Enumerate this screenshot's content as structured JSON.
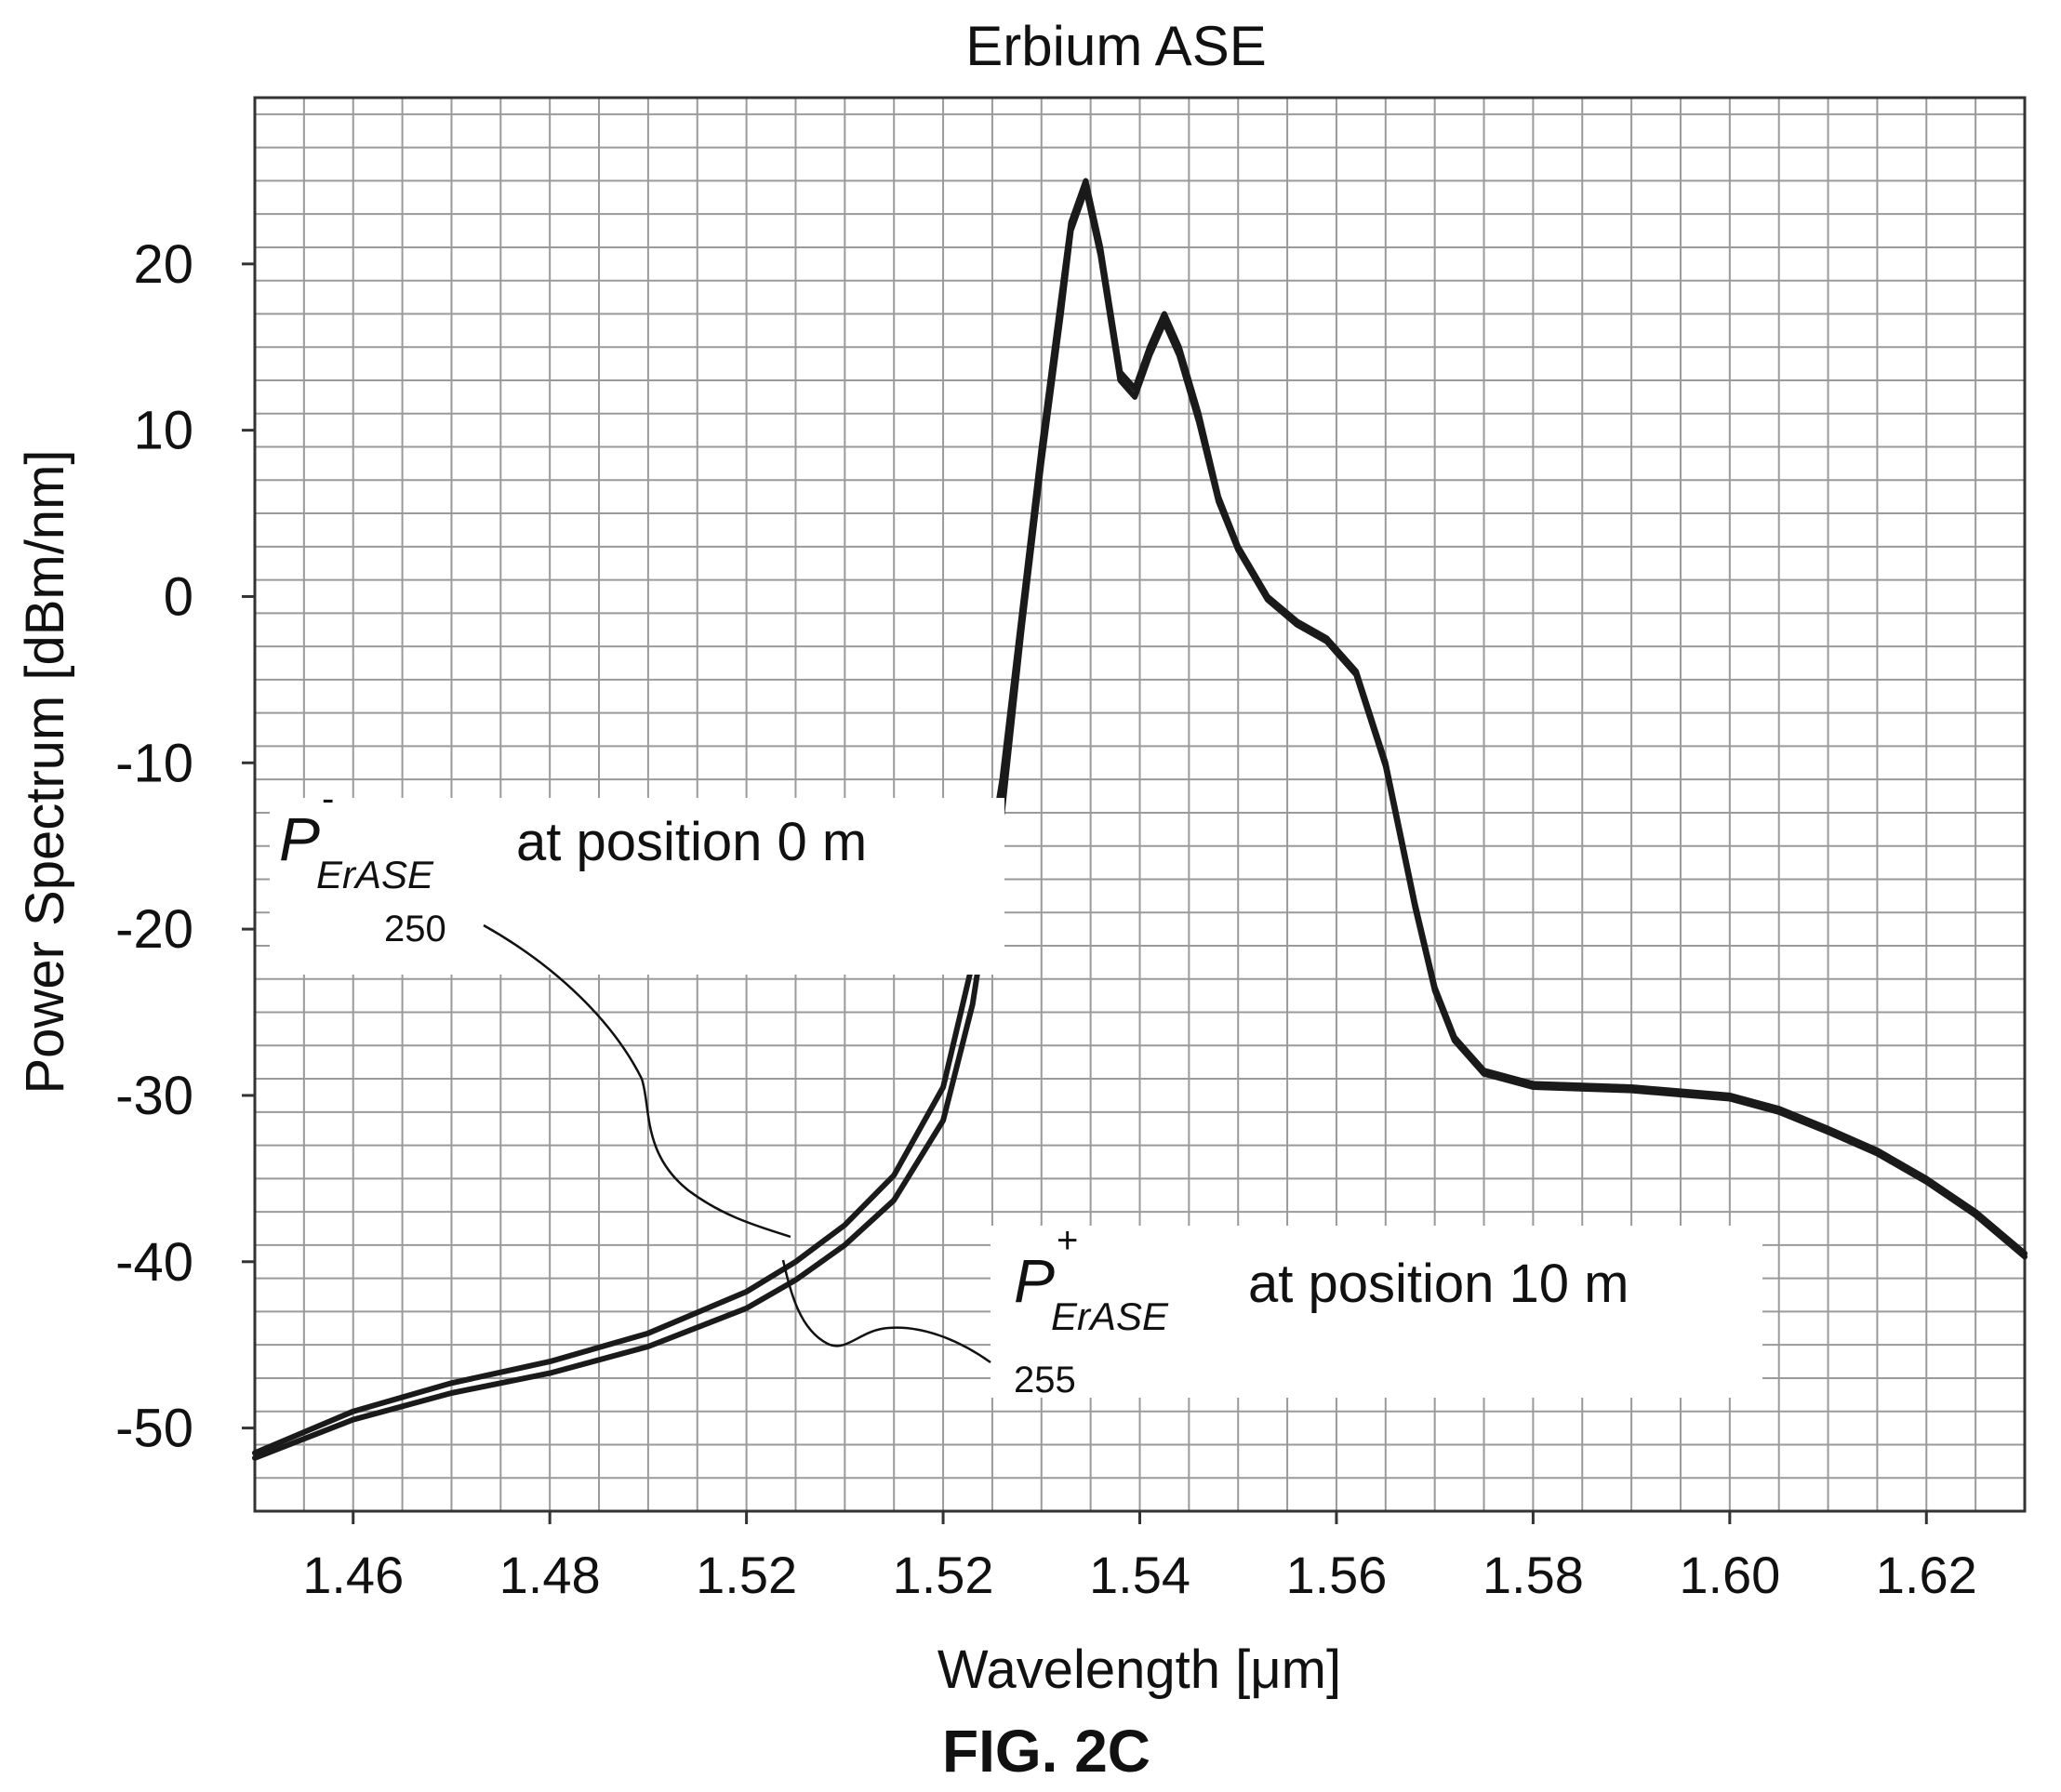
{
  "figure_label": "FIG. 2C",
  "chart_data": {
    "type": "line",
    "title": "Erbium ASE",
    "xlabel": "Wavelength [μm]",
    "ylabel": "Power Spectrum [dBm/nm]",
    "xlim": [
      1.45,
      1.63
    ],
    "ylim": [
      -55,
      30
    ],
    "xticks": [
      1.46,
      1.48,
      1.5,
      1.52,
      1.54,
      1.56,
      1.58,
      1.6,
      1.62
    ],
    "xtick_labels": [
      "1.46",
      "1.48",
      "1.52",
      "1.52",
      "1.54",
      "1.56",
      "1.58",
      "1.60",
      "1.62"
    ],
    "yticks": [
      20,
      10,
      0,
      -10,
      -20,
      -30,
      -40,
      -50
    ],
    "ytick_labels": [
      "20",
      "10",
      "0",
      "-10",
      "-20",
      "-30",
      "-40",
      "-50"
    ],
    "grid": true,
    "series": [
      {
        "ref": "P_ErASE^-",
        "x": [
          1.45,
          1.46,
          1.47,
          1.48,
          1.49,
          1.5,
          1.505,
          1.51,
          1.515,
          1.52,
          1.523,
          1.526,
          1.528,
          1.53,
          1.532,
          1.533,
          1.5345,
          1.536,
          1.538,
          1.5395,
          1.541,
          1.5425,
          1.544,
          1.546,
          1.548,
          1.55,
          1.553,
          1.556,
          1.559,
          1.562,
          1.565,
          1.568,
          1.57,
          1.572,
          1.575,
          1.58,
          1.59,
          1.6,
          1.605,
          1.61,
          1.615,
          1.62,
          1.625,
          1.63
        ],
        "y": [
          -51.5,
          -49.0,
          -47.3,
          -46.0,
          -44.3,
          -41.8,
          -40.0,
          -37.8,
          -34.8,
          -29.5,
          -22.0,
          -11.0,
          -1.0,
          9.0,
          18.0,
          22.5,
          25.0,
          21.0,
          13.5,
          12.5,
          15.0,
          17.0,
          15.0,
          11.0,
          6.0,
          3.0,
          0.0,
          -1.5,
          -2.5,
          -4.5,
          -10.0,
          -18.5,
          -23.5,
          -26.5,
          -28.5,
          -29.3,
          -29.5,
          -30.0,
          -30.8,
          -32.0,
          -33.3,
          -35.0,
          -37.0,
          -39.5
        ]
      },
      {
        "ref": "P_ErASE^+",
        "x": [
          1.45,
          1.46,
          1.47,
          1.48,
          1.49,
          1.5,
          1.505,
          1.51,
          1.515,
          1.52,
          1.523,
          1.526,
          1.528,
          1.53,
          1.532,
          1.533,
          1.5345,
          1.536,
          1.538,
          1.5395,
          1.541,
          1.5425,
          1.544,
          1.546,
          1.548,
          1.55,
          1.553,
          1.556,
          1.559,
          1.562,
          1.565,
          1.568,
          1.57,
          1.572,
          1.575,
          1.58,
          1.59,
          1.6,
          1.605,
          1.61,
          1.615,
          1.62,
          1.625,
          1.63
        ],
        "y": [
          -51.8,
          -49.5,
          -47.9,
          -46.7,
          -45.1,
          -42.8,
          -41.1,
          -39.0,
          -36.3,
          -31.5,
          -24.5,
          -13.0,
          -2.0,
          8.0,
          17.0,
          22.0,
          24.5,
          20.5,
          13.0,
          12.0,
          14.5,
          16.5,
          14.5,
          10.5,
          5.7,
          2.8,
          -0.2,
          -1.7,
          -2.7,
          -4.7,
          -10.2,
          -18.7,
          -23.7,
          -26.7,
          -28.7,
          -29.5,
          -29.7,
          -30.2,
          -31.0,
          -32.2,
          -33.5,
          -35.2,
          -37.2,
          -39.7
        ]
      }
    ],
    "annotations": [
      {
        "symbol": "P",
        "sup": "-",
        "sub": "ErASE",
        "text": "at position 0 m",
        "ref": "250"
      },
      {
        "symbol": "P",
        "sup": "+",
        "sub": "ErASE",
        "text": "at position 10 m",
        "ref": "255"
      }
    ]
  }
}
